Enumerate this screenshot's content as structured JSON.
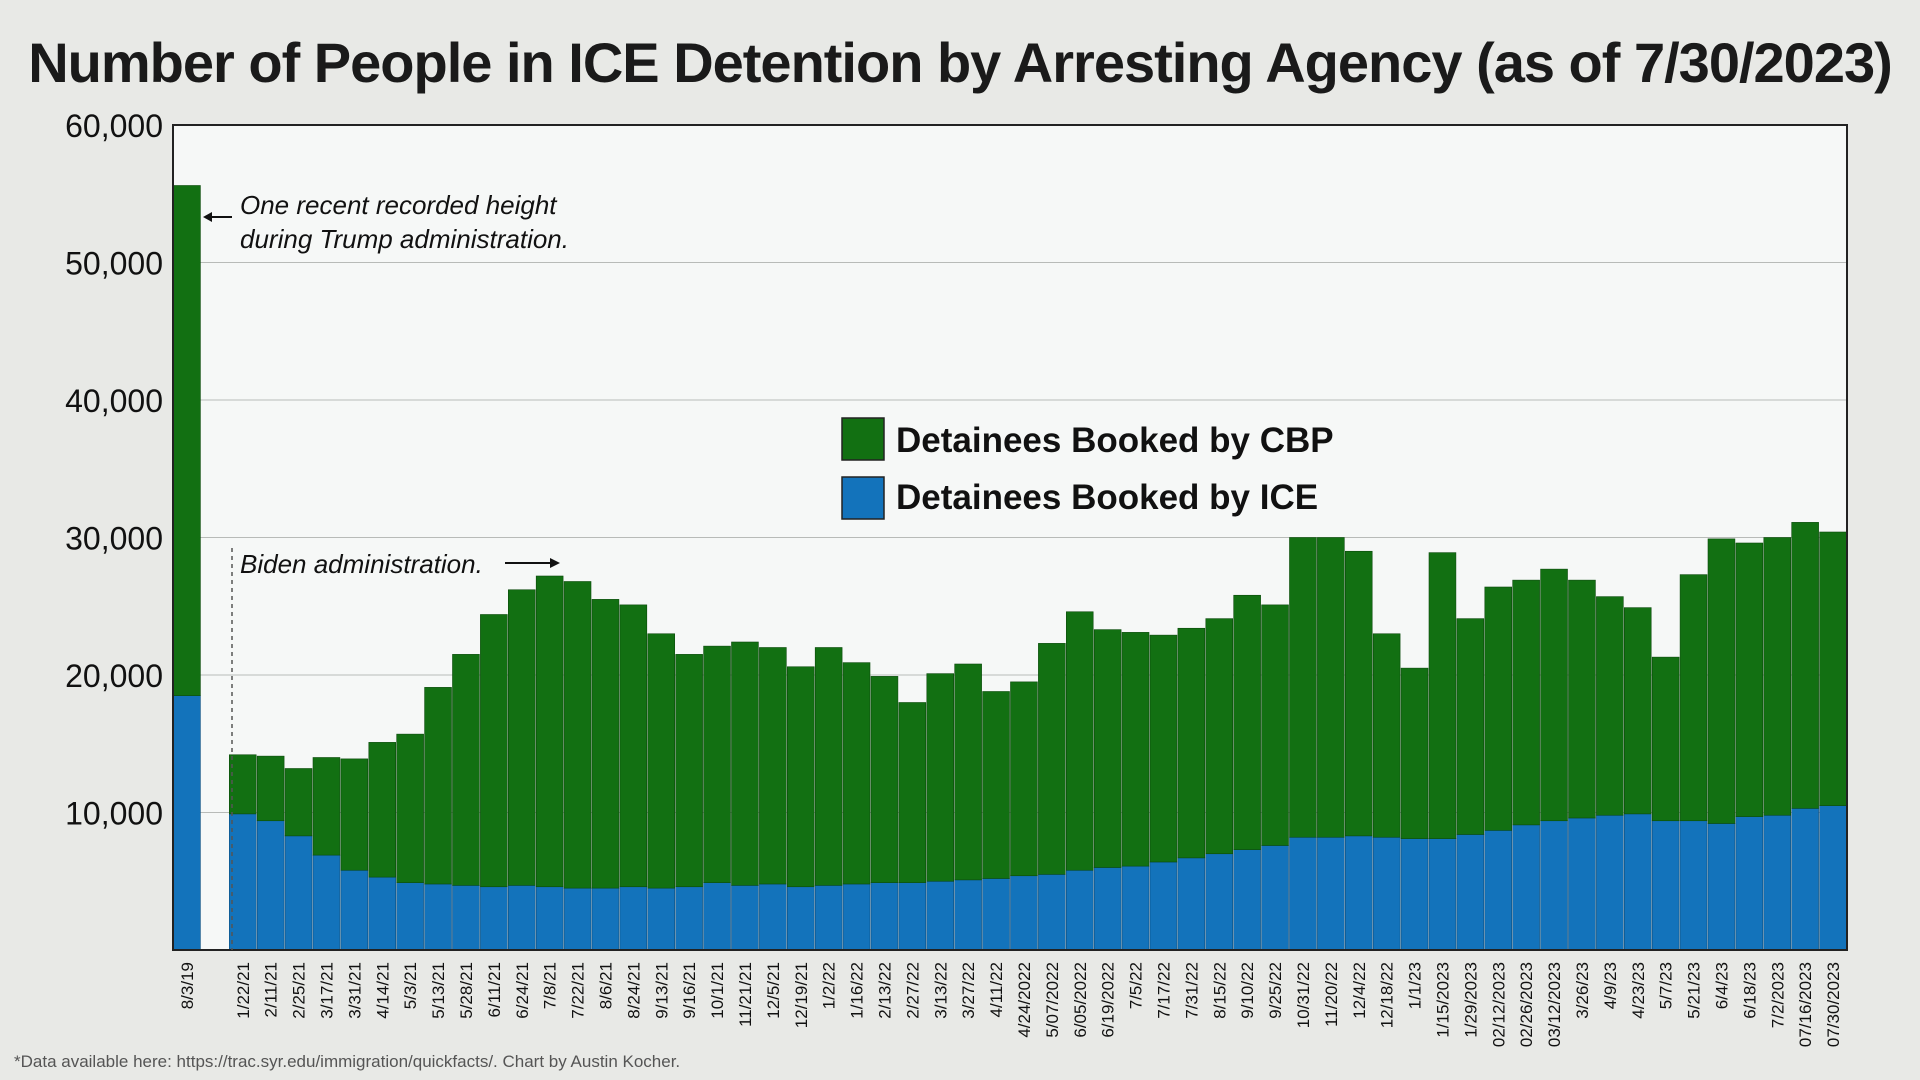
{
  "chart_data": {
    "type": "bar",
    "stacked": true,
    "title": "Number of People in ICE Detention by Arresting Agency (as of 7/30/2023)",
    "xlabel": "",
    "ylabel": "",
    "ylim": [
      0,
      60000
    ],
    "yticks": [
      10000,
      20000,
      30000,
      40000,
      50000,
      60000
    ],
    "ytick_labels": [
      "10,000",
      "20,000",
      "30,000",
      "40,000",
      "50,000",
      "60,000"
    ],
    "grid": true,
    "legend_position": "center",
    "colors": {
      "cbp": "#127012",
      "ice": "#1373bb",
      "plot_bg": "#f6f8f7",
      "page_bg": "#e8e9e6"
    },
    "categories": [
      "8/3/19",
      "",
      "1/22/21",
      "2/11/21",
      "2/25/21",
      "3/17/21",
      "3/31/21",
      "4/14/21",
      "5/3/21",
      "5/13/21",
      "5/28/21",
      "6/11/21",
      "6/24/21",
      "7/8/21",
      "7/22/21",
      "8/6/21",
      "8/24/21",
      "9/13/21",
      "9/16/21",
      "10/1/21",
      "11/21/21",
      "12/5/21",
      "12/19/21",
      "1/2/22",
      "1/16/22",
      "2/13/22",
      "2/27/22",
      "3/13/22",
      "3/27/22",
      "4/11/22",
      "4/24/2022",
      "5/07/2022",
      "6/05/2022",
      "6/19/2022",
      "7/5/22",
      "7/17/22",
      "7/31/22",
      "8/15/22",
      "9/10/22",
      "9/25/22",
      "10/31/22",
      "11/20/22",
      "12/4/22",
      "12/18/22",
      "1/1/23",
      "1/15/2023",
      "1/29/2023",
      "02/12/2023",
      "02/26/2023",
      "03/12/2023",
      "3/26/23",
      "4/9/23",
      "4/23/23",
      "5/7/23",
      "5/21/23",
      "6/4/23",
      "6/18/23",
      "7/2/2023",
      "07/16/2023",
      "07/30/2023"
    ],
    "series": [
      {
        "name": "Detainees Booked by ICE",
        "key": "ice",
        "values": [
          18500,
          null,
          9900,
          9400,
          8300,
          6900,
          5800,
          5300,
          4900,
          4800,
          4700,
          4600,
          4700,
          4600,
          4500,
          4500,
          4600,
          4500,
          4600,
          4900,
          4700,
          4800,
          4600,
          4700,
          4800,
          4900,
          4900,
          5000,
          5100,
          5200,
          5400,
          5500,
          5800,
          6000,
          6100,
          6400,
          6700,
          7000,
          7300,
          7600,
          8200,
          8200,
          8300,
          8200,
          8100,
          8100,
          8400,
          8700,
          9100,
          9400,
          9600,
          9800,
          9900,
          9400,
          9400,
          9200,
          9700,
          9800,
          10300,
          10500
        ]
      },
      {
        "name": "Detainees Booked by CBP",
        "key": "cbp",
        "values": [
          37100,
          null,
          4300,
          4700,
          4900,
          7100,
          8100,
          9800,
          10800,
          14300,
          16800,
          19800,
          21500,
          22600,
          22300,
          21000,
          20500,
          18500,
          16900,
          17200,
          17700,
          17200,
          16000,
          17300,
          16100,
          15000,
          13100,
          15100,
          15700,
          13600,
          14100,
          16800,
          18800,
          17300,
          17000,
          16500,
          16700,
          17100,
          18500,
          17500,
          21800,
          21800,
          20700,
          14800,
          12400,
          20800,
          15700,
          17700,
          17800,
          18300,
          17300,
          15900,
          15000,
          11900,
          17900,
          20700,
          19900,
          20200,
          20800,
          19900
        ]
      }
    ],
    "legend": [
      {
        "label": "Detainees Booked by CBP",
        "key": "cbp"
      },
      {
        "label": "Detainees Booked by ICE",
        "key": "ice"
      }
    ],
    "annotations": {
      "trump_line1": "One recent recorded height",
      "trump_line2": "during Trump administration.",
      "biden": "Biden administration."
    },
    "footnote": "*Data available here: https://trac.syr.edu/immigration/quickfacts/. Chart by Austin Kocher."
  }
}
